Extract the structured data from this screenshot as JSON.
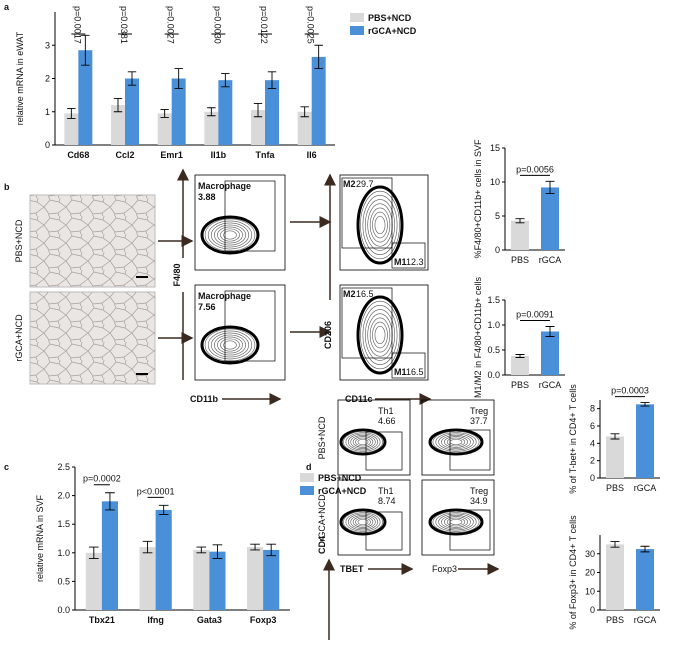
{
  "panel_labels": [
    "a",
    "b",
    "c",
    "d"
  ],
  "chart_data": [
    {
      "type": "bar",
      "ylabel": "relative mRNA in eWAT",
      "categories": [
        "Cd68",
        "Ccl2",
        "Emr1",
        "Il1b",
        "Tnfa",
        "Il6"
      ],
      "series": [
        {
          "name": "PBS+NCD",
          "color": "#d9d9d9",
          "values": [
            0.95,
            1.2,
            0.95,
            1.0,
            1.05,
            1.0
          ],
          "errors": [
            0.15,
            0.2,
            0.12,
            0.12,
            0.2,
            0.15
          ]
        },
        {
          "name": "rGCA+NCD",
          "color": "#4a90d9",
          "values": [
            2.85,
            2.0,
            2.0,
            1.95,
            1.95,
            2.65
          ],
          "errors": [
            0.45,
            0.2,
            0.3,
            0.2,
            0.25,
            0.35
          ]
        }
      ],
      "annotations": [
        "p=0.0017",
        "p=0.0381",
        "p=0.0027",
        "p=0.0030",
        "p=0.0122",
        "p=0.0025"
      ],
      "ylim": [
        0,
        4
      ],
      "yticks": [
        0,
        1,
        2,
        3
      ]
    },
    {
      "type": "bar",
      "ylabel": "%F4/80+CD11b+ cells in SVF",
      "categories": [
        "PBS",
        "rGCA"
      ],
      "colors": [
        "#d9d9d9",
        "#4a90d9"
      ],
      "values": [
        4.3,
        9.2
      ],
      "errors": [
        0.3,
        0.9
      ],
      "annotation": "p=0.0056",
      "ylim": [
        0,
        15
      ],
      "yticks": [
        0,
        5,
        10,
        15
      ]
    },
    {
      "type": "bar",
      "ylabel": "M1/M2 in F4/80+CD11b+ cells",
      "categories": [
        "PBS",
        "rGCA"
      ],
      "colors": [
        "#d9d9d9",
        "#4a90d9"
      ],
      "values": [
        0.38,
        0.87
      ],
      "errors": [
        0.03,
        0.1
      ],
      "annotation": "p=0.0091",
      "ylim": [
        0,
        1.5
      ],
      "yticks": [
        {
          "value": 0,
          "label": "0.0"
        },
        {
          "value": 0.5,
          "label": "0.5"
        },
        {
          "value": 1,
          "label": "1.0"
        },
        {
          "value": 1.5,
          "label": "1.5"
        }
      ]
    },
    {
      "type": "bar",
      "ylabel": "relative mRNA in SVF",
      "categories": [
        "Tbx21",
        "Ifng",
        "Gata3",
        "Foxp3"
      ],
      "series": [
        {
          "name": "PBS+NCD",
          "color": "#d9d9d9",
          "values": [
            1.0,
            1.1,
            1.05,
            1.1
          ],
          "errors": [
            0.1,
            0.1,
            0.05,
            0.05
          ]
        },
        {
          "name": "rGCA+NCD",
          "color": "#4a90d9",
          "values": [
            1.9,
            1.75,
            1.02,
            1.05
          ],
          "errors": [
            0.15,
            0.08,
            0.12,
            0.1
          ]
        }
      ],
      "annotations": [
        "p=0.0002",
        "p<0.0001",
        null,
        null
      ],
      "ylim": [
        0,
        2.5
      ],
      "yticks": [
        {
          "value": 0,
          "label": "0.0"
        },
        {
          "value": 0.5,
          "label": "0.5"
        },
        {
          "value": 1,
          "label": "1.0"
        },
        {
          "value": 1.5,
          "label": "1.5"
        },
        {
          "value": 2,
          "label": "2.0"
        },
        {
          "value": 2.5,
          "label": "2.5"
        }
      ]
    },
    {
      "type": "bar",
      "ylabel": "% of T-bet+ in CD4+ T cells",
      "categories": [
        "PBS",
        "rGCA"
      ],
      "colors": [
        "#d9d9d9",
        "#4a90d9"
      ],
      "values": [
        4.8,
        8.5
      ],
      "errors": [
        0.3,
        0.2
      ],
      "annotation": "p=0.0003",
      "ylim": [
        0,
        9
      ],
      "yticks": [
        0,
        2,
        4,
        6,
        8
      ]
    },
    {
      "type": "bar",
      "ylabel": "% of Foxp3+ in CD4+ T cells",
      "categories": [
        "PBS",
        "rGCA"
      ],
      "colors": [
        "#d9d9d9",
        "#4a90d9"
      ],
      "values": [
        35,
        32.5
      ],
      "errors": [
        1.5,
        1.5
      ],
      "ylim": [
        0,
        40
      ],
      "yticks": [
        0,
        10,
        20,
        30
      ]
    }
  ],
  "histology": {
    "rows": [
      "PBS+NCD",
      "rGCA+NCD"
    ]
  },
  "flow_b": {
    "y_axis": "F4/80",
    "x_axis": "CD11b",
    "y_axis_2": "CD206",
    "x_axis_2": "CD11c",
    "macrophage_gates": [
      {
        "label": "Macrophage",
        "value": 3.88
      },
      {
        "label": "Macrophage",
        "value": 7.56
      }
    ],
    "polarization_gates": [
      {
        "m2_label": "M2",
        "m2": 29.7,
        "m1_label": "M1",
        "m1": 12.3
      },
      {
        "m2_label": "M2",
        "m2": 16.5,
        "m1_label": "M1",
        "m1": 16.5
      }
    ]
  },
  "flow_d": {
    "rows": [
      "PBS+NCD",
      "rGCA+NCD"
    ],
    "y_axis": "CD4",
    "x_axis_1": "TBET",
    "x_axis_2": "Foxp3",
    "gates": [
      {
        "th1_label": "Th1",
        "th1": 4.66,
        "treg_label": "Treg",
        "treg": 37.7
      },
      {
        "th1_label": "Th1",
        "th1": 8.74,
        "treg_label": "Treg",
        "treg": 34.9
      }
    ]
  }
}
